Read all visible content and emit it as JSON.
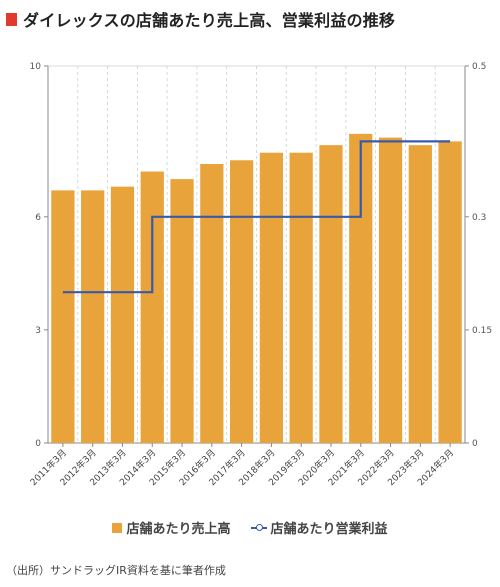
{
  "header": {
    "title": "ダイレックスの店舗あたり売上高、営業利益の推移"
  },
  "colors": {
    "bar": "#e8a33a",
    "line": "#3a5aa8",
    "title_mark": "#e03a2f"
  },
  "chart_data": {
    "type": "bar",
    "title": "ダイレックスの店舗あたり売上高、営業利益の推移",
    "categories": [
      "2011年3月",
      "2012年3月",
      "2013年3月",
      "2014年3月",
      "2015年3月",
      "2016年3月",
      "2017年3月",
      "2018年3月",
      "2019年3月",
      "2020年3月",
      "2021年3月",
      "2022年3月",
      "2023年3月",
      "2024年3月"
    ],
    "series": [
      {
        "name": "店舗あたり売上高",
        "type": "bar",
        "axis": "left",
        "values": [
          6.7,
          6.7,
          6.8,
          7.2,
          7.0,
          7.4,
          7.5,
          7.7,
          7.7,
          7.9,
          8.2,
          8.1,
          7.9,
          8.0
        ]
      },
      {
        "name": "店舗あたり営業利益",
        "type": "line",
        "axis": "right",
        "step": true,
        "values": [
          0.2,
          0.2,
          0.2,
          0.3,
          0.3,
          0.3,
          0.3,
          0.3,
          0.3,
          0.3,
          0.4,
          0.4,
          0.4,
          0.4
        ]
      }
    ],
    "y_left": {
      "ticks": [
        0,
        3,
        6,
        10
      ],
      "ylim": [
        0,
        10
      ]
    },
    "y_right": {
      "ticks": [
        0,
        0.15,
        0.3,
        0.5
      ],
      "ylim": [
        0,
        0.5
      ]
    },
    "grid": true,
    "legend": "bottom"
  },
  "legend": {
    "bar_label": "店舗あたり売上高",
    "line_label": "店舗あたり営業利益"
  },
  "source": "（出所）サンドラッグIR資料を基に筆者作成"
}
